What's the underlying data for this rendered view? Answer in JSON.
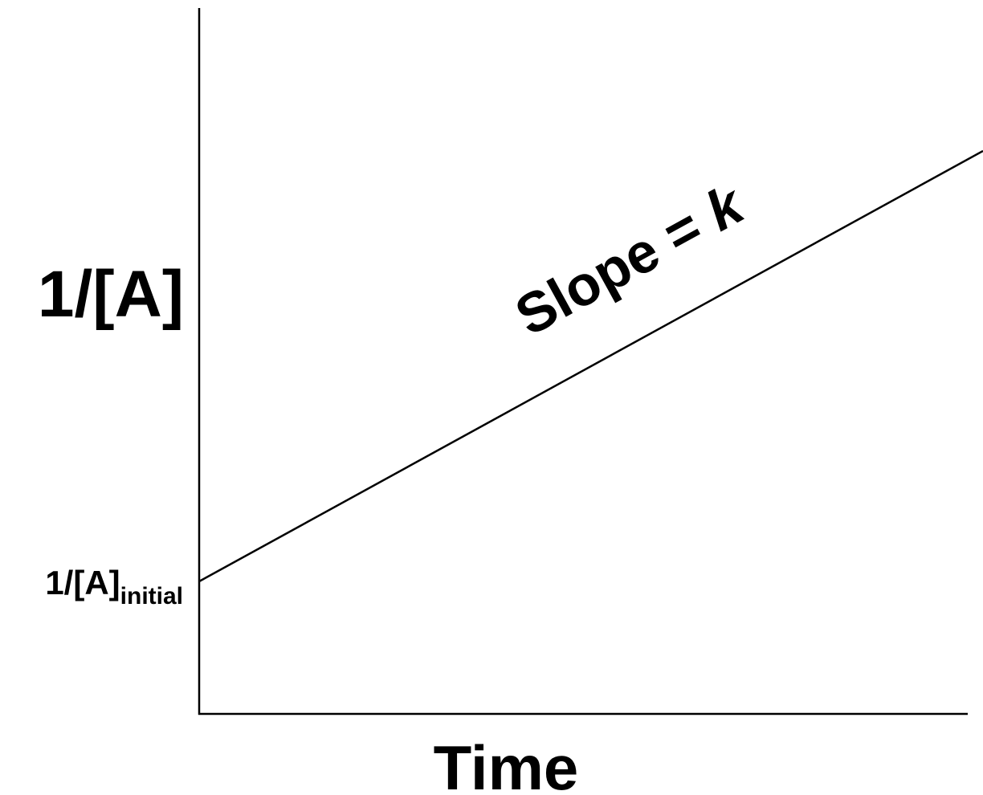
{
  "y_axis_label": "1/[A]",
  "intercept_label": {
    "main": "1/[A]",
    "subscript": "initial"
  },
  "slope_label": {
    "text": "Slope = ",
    "symbol": "k"
  },
  "x_axis_label": "Time"
}
